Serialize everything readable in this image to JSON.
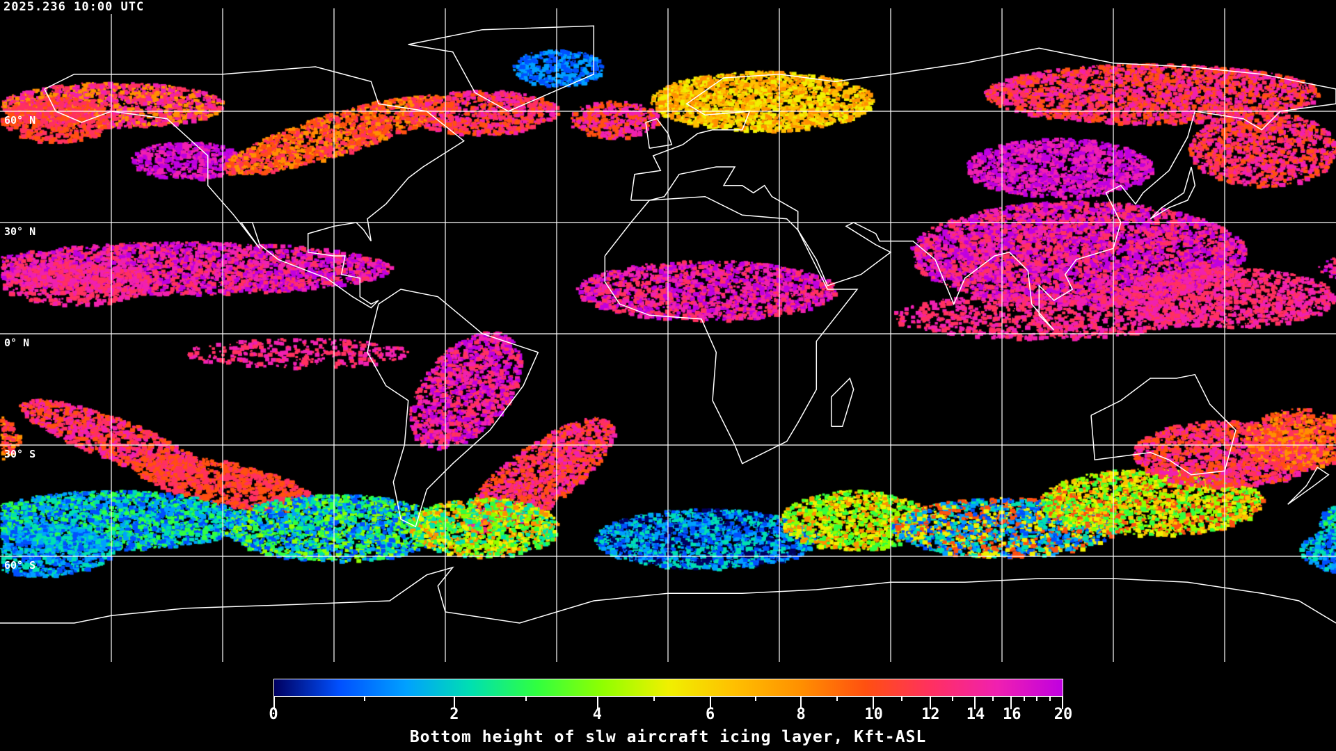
{
  "header": {
    "timestamp": "2025.236 10:00 UTC"
  },
  "map": {
    "projection": "equirectangular",
    "lat_labels": [
      "60° N",
      "30° N",
      "0° N",
      "30° S",
      "60° S"
    ],
    "lat_label_values": [
      60,
      30,
      0,
      -30,
      -60
    ],
    "gridline_lons": [
      -150,
      -120,
      -90,
      -60,
      -30,
      0,
      30,
      60,
      90,
      120,
      150
    ],
    "gridline_lats": [
      60,
      30,
      0,
      -30,
      -60
    ],
    "coastline_color": "#ffffff",
    "grid_color": "#ffffff",
    "background_color": "#000000"
  },
  "colorbar": {
    "title": "Bottom height of slw aircraft icing layer, Kft-ASL",
    "range": [
      0,
      20
    ],
    "major_ticks": [
      "0",
      "2",
      "4",
      "6",
      "8",
      "10",
      "12",
      "14",
      "16",
      "20"
    ],
    "minor_ticks": [
      1,
      3,
      5,
      7,
      9,
      11,
      13,
      15,
      17,
      18,
      19
    ],
    "colors": [
      "#000060",
      "#0050ff",
      "#00a0ff",
      "#00e0b0",
      "#30ff40",
      "#90ff00",
      "#f0f000",
      "#ffc000",
      "#ff9000",
      "#ff5010",
      "#ff3060",
      "#f020b0",
      "#c000e0"
    ]
  }
}
